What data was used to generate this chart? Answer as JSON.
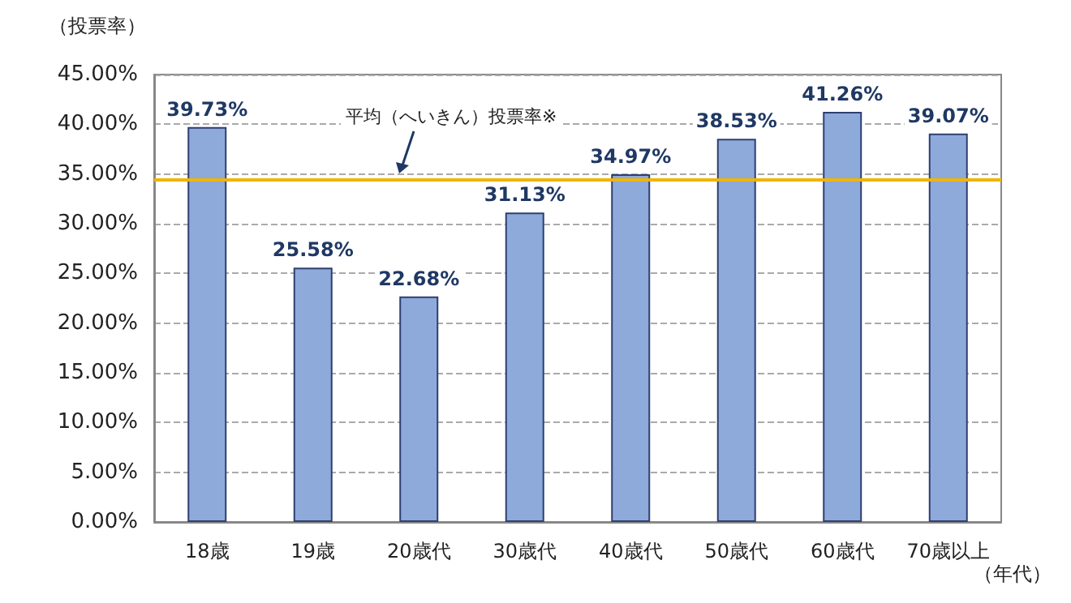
{
  "chart_data": {
    "type": "bar",
    "ylabel": "（投票率）",
    "xlabel": "（年代）",
    "categories": [
      "18歳",
      "19歳",
      "20歳代",
      "30歳代",
      "40歳代",
      "50歳代",
      "60歳代",
      "70歳以上"
    ],
    "values": [
      39.73,
      25.58,
      22.68,
      31.13,
      34.97,
      38.53,
      41.26,
      39.07
    ],
    "value_labels": [
      "39.73%",
      "25.58%",
      "22.68%",
      "31.13%",
      "34.97%",
      "38.53%",
      "41.26%",
      "39.07%"
    ],
    "color": "#8eaadb",
    "ylim": [
      0,
      45
    ],
    "yticks": [
      {
        "value": 0,
        "label": "0.00%"
      },
      {
        "value": 5,
        "label": "5.00%"
      },
      {
        "value": 10,
        "label": "10.00%"
      },
      {
        "value": 15,
        "label": "15.00%"
      },
      {
        "value": 20,
        "label": "20.00%"
      },
      {
        "value": 25,
        "label": "25.00%"
      },
      {
        "value": 30,
        "label": "30.00%"
      },
      {
        "value": 35,
        "label": "35.00%"
      },
      {
        "value": 40,
        "label": "40.00%"
      },
      {
        "value": 45,
        "label": "45.00%"
      }
    ],
    "ref_lines": [
      {
        "axis": "y",
        "value": 34.5,
        "label": "平均（へいきん）投票率※",
        "color": "#f0b400"
      }
    ],
    "grid": "y"
  }
}
